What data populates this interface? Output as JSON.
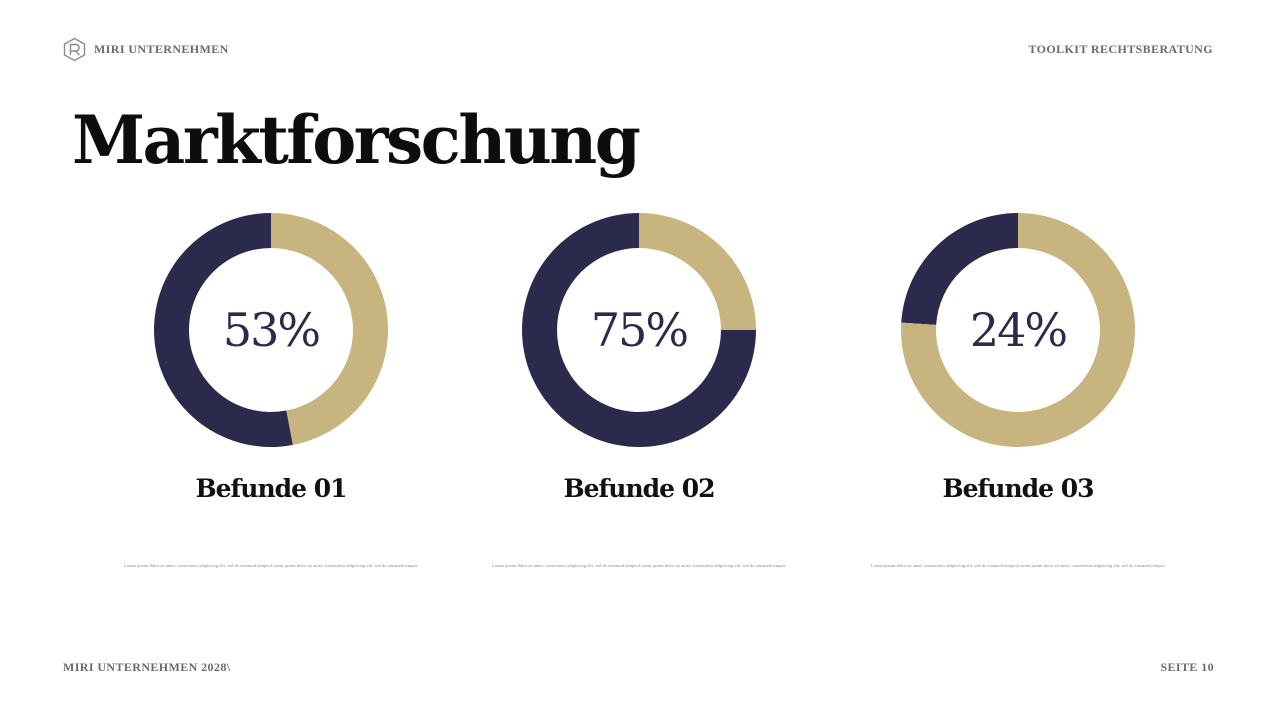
{
  "header": {
    "company": "MIRI UNTERNEHMEN",
    "section": "TOOLKIT RECHTSBERATUNG"
  },
  "title": "Marktforschung",
  "colors": {
    "primary": "#2b2a4c",
    "accent": "#c8b47f"
  },
  "chart_data": [
    {
      "type": "pie",
      "title": "Befunde 01",
      "value_label": "53%",
      "slices": [
        {
          "value": 53,
          "color": "#2b2a4c"
        },
        {
          "value": 47,
          "color": "#c8b47f"
        }
      ],
      "description": "Lorem ipsum dolor sit amet, consectetur adipiscing elit, sed do eiusmod tempor.Lorem ipsum dolor sit amet, consectetur adipiscing elit, sed do eiusmod tempor."
    },
    {
      "type": "pie",
      "title": "Befunde 02",
      "value_label": "75%",
      "slices": [
        {
          "value": 75,
          "color": "#2b2a4c"
        },
        {
          "value": 25,
          "color": "#c8b47f"
        }
      ],
      "description": "Lorem ipsum dolor sit amet, consectetur adipiscing elit, sed do eiusmod tempor.Lorem ipsum dolor sit amet, consectetur adipiscing elit, sed do eiusmod tempor."
    },
    {
      "type": "pie",
      "title": "Befunde 03",
      "value_label": "24%",
      "slices": [
        {
          "value": 24,
          "color": "#2b2a4c"
        },
        {
          "value": 76,
          "color": "#c8b47f"
        }
      ],
      "description": "Lorem ipsum dolor sit amet, consectetur adipiscing elit, sed do eiusmod tempor.Lorem ipsum dolor sit amet, consectetur adipiscing elit, sed do eiusmod tempor."
    }
  ],
  "footer": {
    "left": "MIRI UNTERNEHMEN 2028\\",
    "right": "SEITE 10"
  }
}
